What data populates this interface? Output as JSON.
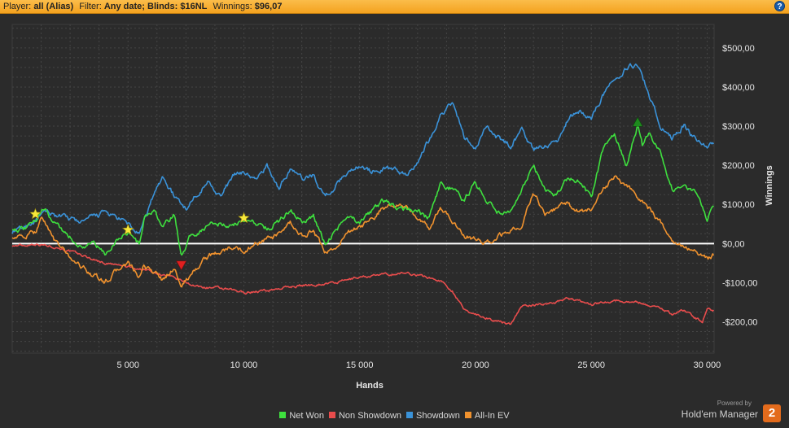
{
  "header": {
    "player_label": "Player:",
    "player_value": "all (Alias)",
    "filter_label": "Filter:",
    "filter_value": "Any date; Blinds: $16NL",
    "winnings_label": "Winnings:",
    "winnings_value": "$96,07",
    "help_label": "?"
  },
  "branding": {
    "powered_by": "Powered by",
    "name": "Hold'em Manager",
    "logo_text": "2"
  },
  "chart_data": {
    "type": "line",
    "title": "",
    "xlabel": "Hands",
    "ylabel": "Winnings",
    "xlim": [
      0,
      30300
    ],
    "ylim": [
      -280,
      560
    ],
    "xticks": [
      5000,
      10000,
      15000,
      20000,
      25000,
      30000
    ],
    "xtick_labels": [
      "5 000",
      "10 000",
      "15 000",
      "20 000",
      "25 000",
      "30 000"
    ],
    "yticks": [
      -200,
      -100,
      0,
      100,
      200,
      300,
      400,
      500
    ],
    "ytick_labels": [
      "-$200,00",
      "-$100,00",
      "$0,00",
      "$100,00",
      "$200,00",
      "$300,00",
      "$400,00",
      "$500,00"
    ],
    "y_axis_side": "right",
    "grid": true,
    "legend_position": "bottom",
    "background": "#2b2b2b",
    "zero_line_color": "#ffffff",
    "series": [
      {
        "name": "Net Won",
        "color": "#3ee03e",
        "x": [
          0,
          500,
          1000,
          1300,
          1800,
          2400,
          3000,
          3500,
          4000,
          4500,
          5000,
          5500,
          5700,
          6200,
          6500,
          7000,
          7300,
          7700,
          8300,
          8800,
          9500,
          10000,
          10500,
          11000,
          11500,
          12000,
          12500,
          13000,
          13500,
          14000,
          14500,
          15000,
          15500,
          16000,
          16500,
          17000,
          17500,
          18000,
          18500,
          19000,
          19500,
          20000,
          20500,
          21000,
          21500,
          22000,
          22500,
          23000,
          23500,
          24000,
          24500,
          25000,
          25500,
          26000,
          26500,
          27000,
          27200,
          27500,
          28000,
          28500,
          29000,
          29500,
          30000,
          30300
        ],
        "y": [
          40,
          35,
          55,
          90,
          60,
          20,
          -10,
          5,
          -30,
          10,
          30,
          -5,
          70,
          80,
          40,
          75,
          -30,
          20,
          40,
          55,
          45,
          60,
          55,
          40,
          55,
          90,
          55,
          70,
          0,
          35,
          75,
          50,
          80,
          110,
          95,
          90,
          80,
          65,
          150,
          140,
          110,
          155,
          110,
          80,
          75,
          135,
          195,
          140,
          120,
          170,
          160,
          115,
          240,
          285,
          200,
          300,
          250,
          280,
          230,
          140,
          150,
          130,
          60,
          100
        ]
      },
      {
        "name": "Non Showdown",
        "color": "#e84c4c",
        "x": [
          0,
          500,
          1000,
          2000,
          3000,
          4000,
          5000,
          6000,
          7000,
          7300,
          8000,
          9000,
          10000,
          11000,
          12000,
          13000,
          14000,
          15000,
          16000,
          17000,
          17500,
          18500,
          19000,
          19500,
          20000,
          21000,
          21500,
          22000,
          23000,
          24000,
          25000,
          26000,
          27000,
          28000,
          28500,
          29000,
          29500,
          29800,
          30000,
          30300
        ],
        "y": [
          -5,
          -5,
          0,
          -10,
          -30,
          -50,
          -60,
          -70,
          -90,
          -95,
          -110,
          -115,
          -125,
          -120,
          -110,
          -105,
          -100,
          -85,
          -80,
          -75,
          -80,
          -95,
          -120,
          -170,
          -180,
          -200,
          -205,
          -160,
          -155,
          -140,
          -155,
          -145,
          -150,
          -165,
          -180,
          -170,
          -190,
          -200,
          -165,
          -170
        ]
      },
      {
        "name": "Showdown",
        "color": "#3a92d8",
        "x": [
          0,
          500,
          1000,
          1500,
          2000,
          3000,
          4000,
          5000,
          5500,
          6000,
          6500,
          7000,
          7500,
          8000,
          8500,
          9000,
          9500,
          10000,
          10500,
          11000,
          11500,
          12000,
          12500,
          13000,
          13500,
          14000,
          14500,
          15000,
          15500,
          16000,
          16500,
          17000,
          17500,
          18000,
          18500,
          19000,
          19500,
          20000,
          20500,
          21000,
          21500,
          22000,
          22500,
          23000,
          23500,
          24000,
          24500,
          25000,
          25500,
          26000,
          26500,
          27000,
          27500,
          28000,
          28500,
          29000,
          29500,
          30000,
          30300
        ],
        "y": [
          30,
          40,
          60,
          80,
          70,
          55,
          80,
          50,
          20,
          110,
          170,
          120,
          90,
          130,
          160,
          120,
          170,
          185,
          160,
          200,
          140,
          190,
          165,
          175,
          120,
          150,
          185,
          200,
          185,
          190,
          190,
          175,
          210,
          265,
          330,
          360,
          275,
          240,
          300,
          270,
          250,
          290,
          240,
          250,
          260,
          320,
          340,
          320,
          380,
          420,
          450,
          460,
          380,
          300,
          270,
          300,
          265,
          250,
          260
        ]
      },
      {
        "name": "All-In EV",
        "color": "#f0922e",
        "x": [
          0,
          500,
          1000,
          1300,
          1800,
          2400,
          3000,
          3500,
          4000,
          4500,
          5000,
          5500,
          5700,
          6200,
          6500,
          7000,
          7300,
          7700,
          8300,
          8800,
          9500,
          10000,
          10500,
          11000,
          11500,
          12000,
          12500,
          13000,
          13500,
          14000,
          14500,
          15000,
          15500,
          16000,
          16500,
          17000,
          17500,
          18000,
          18500,
          19000,
          19500,
          20000,
          20500,
          21000,
          21500,
          22000,
          22500,
          23000,
          23500,
          24000,
          24500,
          25000,
          25500,
          26000,
          26500,
          27000,
          27500,
          28000,
          28500,
          29000,
          29500,
          30000,
          30300
        ],
        "y": [
          20,
          15,
          30,
          70,
          10,
          -30,
          -60,
          -80,
          -100,
          -70,
          -50,
          -90,
          -60,
          -75,
          -95,
          -60,
          -110,
          -80,
          -40,
          -25,
          -10,
          -20,
          0,
          10,
          20,
          50,
          20,
          30,
          -20,
          -10,
          30,
          40,
          60,
          90,
          100,
          95,
          60,
          40,
          90,
          60,
          20,
          10,
          0,
          20,
          30,
          50,
          130,
          80,
          90,
          100,
          80,
          90,
          140,
          170,
          150,
          120,
          90,
          50,
          10,
          -5,
          -20,
          -40,
          -30
        ]
      }
    ],
    "markers": [
      {
        "x": 1000,
        "y": 75,
        "shape": "star",
        "color": "#f7e83a",
        "series": "Net Won"
      },
      {
        "x": 5000,
        "y": 35,
        "shape": "star",
        "color": "#f7e83a",
        "series": "Net Won"
      },
      {
        "x": 10000,
        "y": 65,
        "shape": "star",
        "color": "#f7e83a",
        "series": "Net Won"
      },
      {
        "x": 7300,
        "y": -55,
        "shape": "triangle-down",
        "color": "#e02020",
        "series": "Net Won"
      },
      {
        "x": 27000,
        "y": 310,
        "shape": "triangle-up",
        "color": "#1e8a1e",
        "series": "Net Won"
      }
    ]
  }
}
